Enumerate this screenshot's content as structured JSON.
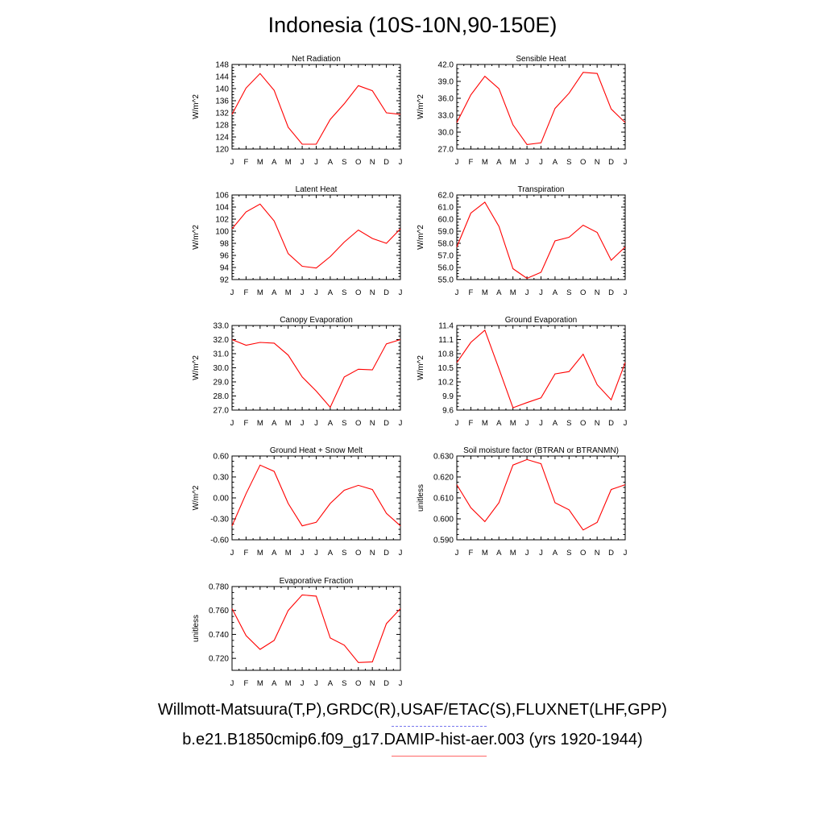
{
  "title": "Indonesia (10S-10N,90-150E)",
  "legend": {
    "observations": "Willmott-Matsuura(T,P),GRDC(R),USAF/ETAC(S),FLUXNET(LHF,GPP)",
    "model": "b.e21.B1850cmip6.f09_g17.DAMIP-hist-aer.003 (yrs 1920-1944)",
    "observations_color": "#7777ee",
    "model_color": "#ff0000"
  },
  "chart_data": [
    {
      "type": "line",
      "title": "Net Radiation",
      "ylabel": "W/m^2",
      "categories": [
        "J",
        "F",
        "M",
        "A",
        "M",
        "J",
        "J",
        "A",
        "S",
        "O",
        "N",
        "D",
        "J"
      ],
      "ylim": [
        120,
        148
      ],
      "yticks": [
        "120",
        "124",
        "128",
        "132",
        "136",
        "140",
        "144",
        "148"
      ],
      "series": [
        {
          "values": [
            131.5,
            140.2,
            145.0,
            139.4,
            127.2,
            121.6,
            121.6,
            129.8,
            135.0,
            141.0,
            139.3,
            132.0,
            131.5
          ]
        }
      ]
    },
    {
      "type": "line",
      "title": "Sensible Heat",
      "ylabel": "W/m^2",
      "categories": [
        "J",
        "F",
        "M",
        "A",
        "M",
        "J",
        "J",
        "A",
        "S",
        "O",
        "N",
        "D",
        "J"
      ],
      "ylim": [
        27.0,
        42.0
      ],
      "yticks": [
        "27.0",
        "30.0",
        "33.0",
        "36.0",
        "39.0",
        "42.0"
      ],
      "series": [
        {
          "values": [
            31.7,
            36.6,
            39.9,
            37.7,
            31.3,
            27.8,
            28.1,
            34.2,
            36.9,
            40.6,
            40.4,
            34.1,
            31.7
          ]
        }
      ]
    },
    {
      "type": "line",
      "title": "Latent Heat",
      "ylabel": "W/m^2",
      "categories": [
        "J",
        "F",
        "M",
        "A",
        "M",
        "J",
        "J",
        "A",
        "S",
        "O",
        "N",
        "D",
        "J"
      ],
      "ylim": [
        92,
        106
      ],
      "yticks": [
        "92",
        "94",
        "96",
        "98",
        "100",
        "102",
        "104",
        "106"
      ],
      "series": [
        {
          "values": [
            100.4,
            103.2,
            104.5,
            101.7,
            96.3,
            94.2,
            93.9,
            95.8,
            98.2,
            100.2,
            98.8,
            98.0,
            100.4
          ]
        }
      ]
    },
    {
      "type": "line",
      "title": "Transpiration",
      "ylabel": "W/m^2",
      "categories": [
        "J",
        "F",
        "M",
        "A",
        "M",
        "J",
        "J",
        "A",
        "S",
        "O",
        "N",
        "D",
        "J"
      ],
      "ylim": [
        55.0,
        62.0
      ],
      "yticks": [
        "55.0",
        "56.0",
        "57.0",
        "58.0",
        "59.0",
        "60.0",
        "61.0",
        "62.0"
      ],
      "series": [
        {
          "values": [
            57.7,
            60.5,
            61.4,
            59.4,
            55.9,
            55.1,
            55.6,
            58.2,
            58.5,
            59.5,
            58.9,
            56.6,
            57.7
          ]
        }
      ]
    },
    {
      "type": "line",
      "title": "Canopy Evaporation",
      "ylabel": "W/m^2",
      "categories": [
        "J",
        "F",
        "M",
        "A",
        "M",
        "J",
        "J",
        "A",
        "S",
        "O",
        "N",
        "D",
        "J"
      ],
      "ylim": [
        27.0,
        33.0
      ],
      "yticks": [
        "27.0",
        "28.0",
        "29.0",
        "30.0",
        "31.0",
        "32.0",
        "33.0"
      ],
      "series": [
        {
          "values": [
            32.0,
            31.6,
            31.8,
            31.75,
            30.9,
            29.35,
            28.35,
            27.2,
            29.35,
            29.9,
            29.85,
            31.7,
            32.0
          ]
        }
      ]
    },
    {
      "type": "line",
      "title": "Ground Evaporation",
      "ylabel": "W/m^2",
      "categories": [
        "J",
        "F",
        "M",
        "A",
        "M",
        "J",
        "J",
        "A",
        "S",
        "O",
        "N",
        "D",
        "J"
      ],
      "ylim": [
        9.6,
        11.4
      ],
      "yticks": [
        "9.6",
        "9.9",
        "10.2",
        "10.5",
        "10.8",
        "11.1",
        "11.4"
      ],
      "series": [
        {
          "values": [
            10.61,
            11.04,
            11.3,
            10.48,
            9.65,
            9.76,
            9.86,
            10.37,
            10.42,
            10.79,
            10.14,
            9.82,
            10.61
          ]
        }
      ]
    },
    {
      "type": "line",
      "title": "Ground Heat + Snow Melt",
      "ylabel": "W/m^2",
      "categories": [
        "J",
        "F",
        "M",
        "A",
        "M",
        "J",
        "J",
        "A",
        "S",
        "O",
        "N",
        "D",
        "J"
      ],
      "ylim": [
        -0.6,
        0.6
      ],
      "yticks": [
        "-0.60",
        "-0.30",
        "0.00",
        "0.30",
        "0.60"
      ],
      "series": [
        {
          "values": [
            -0.4,
            0.06,
            0.47,
            0.38,
            -0.08,
            -0.4,
            -0.35,
            -0.08,
            0.11,
            0.18,
            0.12,
            -0.22,
            -0.4
          ]
        }
      ]
    },
    {
      "type": "line",
      "title": "Soil moisture factor (BTRAN or BTRANMN)",
      "ylabel": "unitless",
      "categories": [
        "J",
        "F",
        "M",
        "A",
        "M",
        "J",
        "J",
        "A",
        "S",
        "O",
        "N",
        "D",
        "J"
      ],
      "ylim": [
        0.59,
        0.63
      ],
      "yticks": [
        "0.590",
        "0.600",
        "0.610",
        "0.620",
        "0.630"
      ],
      "series": [
        {
          "values": [
            0.6163,
            0.6053,
            0.5987,
            0.6077,
            0.6257,
            0.6283,
            0.6263,
            0.6077,
            0.6043,
            0.5947,
            0.5983,
            0.614,
            0.6163
          ]
        }
      ]
    },
    {
      "type": "line",
      "title": "Evaporative Fraction",
      "ylabel": "unitless",
      "categories": [
        "J",
        "F",
        "M",
        "A",
        "M",
        "J",
        "J",
        "A",
        "S",
        "O",
        "N",
        "D",
        "J"
      ],
      "ylim": [
        0.71,
        0.78
      ],
      "yticks": [
        "0.720",
        "0.740",
        "0.760",
        "0.780"
      ],
      "series": [
        {
          "values": [
            0.7615,
            0.739,
            0.7275,
            0.735,
            0.76,
            0.773,
            0.772,
            0.737,
            0.731,
            0.7165,
            0.717,
            0.749,
            0.7615
          ]
        }
      ]
    }
  ]
}
